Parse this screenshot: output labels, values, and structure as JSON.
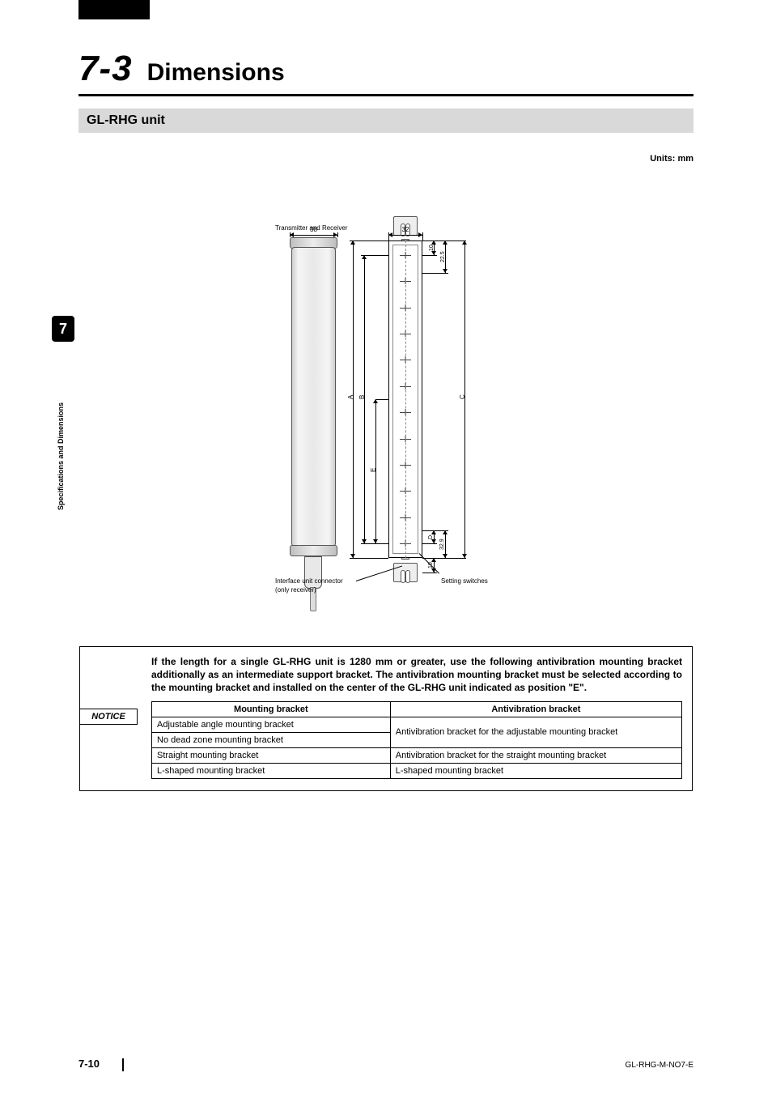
{
  "page": {
    "section_number": "7-3",
    "section_title": "Dimensions",
    "subheading": "GL-RHG unit",
    "units_label": "Units: mm",
    "chapter_tab": "7",
    "side_label": "Specifications and Dimensions",
    "footer_page": "7-10",
    "footer_docid": "GL-RHG-M-NO7-E"
  },
  "diagram": {
    "label_transmitter_receiver": "Transmitter and Receiver",
    "label_interface_connector": "Interface unit connector",
    "label_only_receiver": "(only receiver)",
    "label_setting_switches": "Setting switches",
    "dim_left_width": "38",
    "dim_right_width": "32",
    "dim_top_offset": "10",
    "dim_top_ext": "22.5",
    "dim_bottom_offset": "10",
    "dim_switch": "32.9",
    "letter_A": "A",
    "letter_B": "B",
    "letter_C": "C",
    "letter_D": "D",
    "letter_E": "E",
    "beam_count": 12
  },
  "notice": {
    "tag": "NOTICE",
    "text": "If the length for a single GL-RHG unit is 1280 mm or greater, use the following antivibration mounting bracket additionally as an intermediate support bracket. The antivibration mounting bracket must be selected according to the mounting bracket and installed on the center of the GL-RHG unit indicated as position \"E\".",
    "columns": [
      "Mounting bracket",
      "Antivibration bracket"
    ],
    "rows": [
      {
        "mount": "Adjustable angle mounting bracket",
        "anti": "Antivibration bracket for the adjustable mounting bracket",
        "rowspan_anti": 2,
        "skip_anti": false
      },
      {
        "mount": "No dead zone mounting bracket",
        "skip_anti": true
      },
      {
        "mount": "Straight mounting bracket",
        "anti": "Antivibration bracket for the straight mounting bracket",
        "skip_anti": false
      },
      {
        "mount": "L-shaped mounting bracket",
        "anti": "L-shaped mounting bracket",
        "skip_anti": false
      }
    ]
  },
  "colors": {
    "black": "#000000",
    "grey_bar": "#d9d9d9",
    "metal_light": "#ececec",
    "metal_dark": "#bfbfbf"
  }
}
